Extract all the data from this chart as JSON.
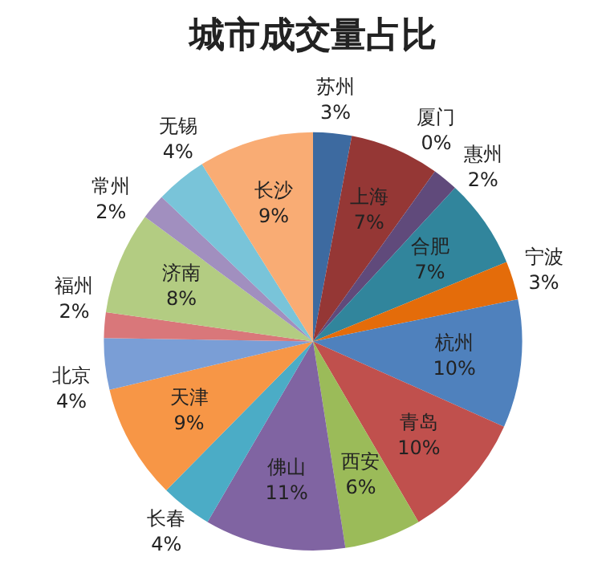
{
  "chart_data": {
    "type": "pie",
    "title": "城市成交量占比",
    "categories": [
      "苏州",
      "上海",
      "厦门",
      "惠州",
      "合肥",
      "宁波",
      "杭州",
      "青岛",
      "西安",
      "佛山",
      "长春",
      "天津",
      "北京",
      "福州",
      "济南",
      "常州",
      "无锡",
      "长沙"
    ],
    "values": [
      3,
      7,
      0,
      2,
      7,
      3,
      10,
      10,
      6,
      11,
      4,
      9,
      4,
      2,
      8,
      2,
      4,
      9
    ],
    "colors": [
      "#3d6aa0",
      "#953735",
      "#77933c",
      "#604a7b",
      "#31859c",
      "#e46c0a",
      "#4f81bd",
      "#c0504d",
      "#9bbb59",
      "#8064a2",
      "#4bacc6",
      "#f79646",
      "#7a9ed6",
      "#d9777a",
      "#b3cc82",
      "#a18fbf",
      "#79c4d9",
      "#f9ac74"
    ],
    "value_labels": [
      "3%",
      "7%",
      "0%",
      "2%",
      "7%",
      "3%",
      "10%",
      "10%",
      "6%",
      "11%",
      "4%",
      "9%",
      "4%",
      "2%",
      "8%",
      "2%",
      "4%",
      "9%"
    ],
    "legend": false
  }
}
